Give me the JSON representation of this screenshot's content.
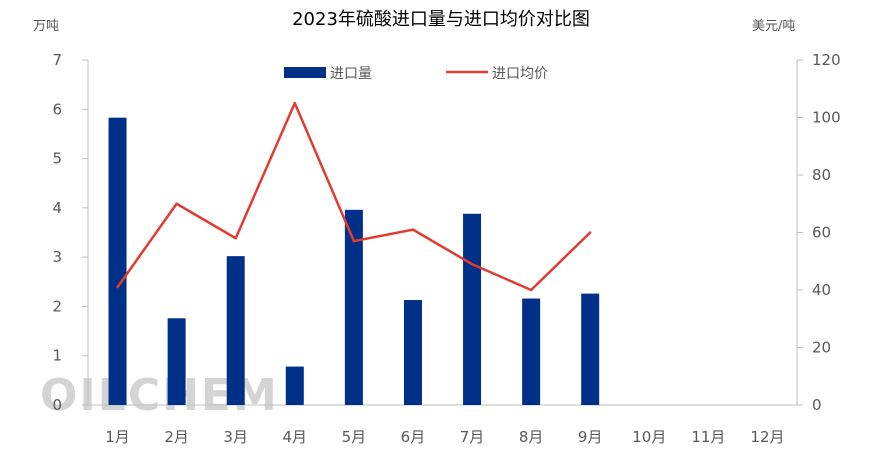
{
  "chart_data": {
    "type": "bar+line",
    "title": "2023年硫酸进口量与进口均价对比图",
    "y_left_label": "万吨",
    "y_right_label": "美元/吨",
    "y_left_lim": [
      0,
      7
    ],
    "y_right_lim": [
      0,
      120
    ],
    "y_left_ticks": [
      "0",
      "1",
      "2",
      "3",
      "4",
      "5",
      "6",
      "7"
    ],
    "y_right_ticks": [
      "0",
      "20",
      "40",
      "60",
      "80",
      "100",
      "120"
    ],
    "categories": [
      "1月",
      "2月",
      "3月",
      "4月",
      "5月",
      "6月",
      "7月",
      "8月",
      "9月",
      "10月",
      "11月",
      "12月"
    ],
    "series": [
      {
        "name": "进口量",
        "type": "bar",
        "axis": "left",
        "color": "#003087",
        "values": [
          5.83,
          1.76,
          3.02,
          0.78,
          3.96,
          2.13,
          3.88,
          2.16,
          2.26,
          null,
          null,
          null
        ]
      },
      {
        "name": "进口均价",
        "type": "line",
        "axis": "right",
        "color": "#e03c31",
        "values": [
          41,
          70,
          58,
          105,
          57,
          61,
          49,
          40,
          60,
          null,
          null,
          null
        ]
      }
    ],
    "legend_position": "top-center",
    "grid": false
  },
  "watermark": {
    "text": "OILCHEM"
  }
}
